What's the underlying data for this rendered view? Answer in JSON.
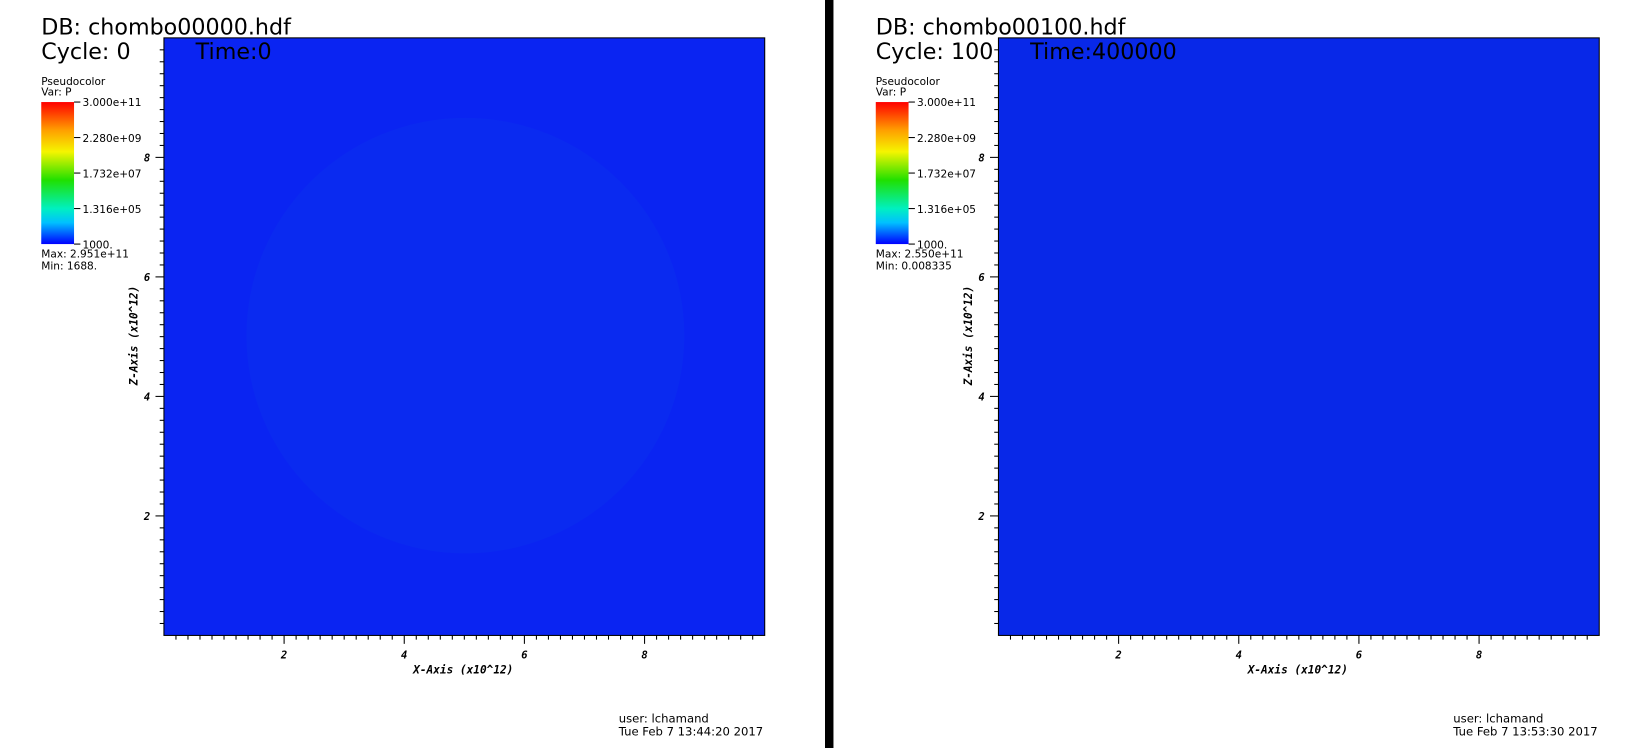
{
  "panels": [
    {
      "db": "DB: chombo00000.hdf",
      "cycle": "Cycle: 0",
      "time": "Time:0",
      "legend": {
        "title": "Pseudocolor",
        "var": "Var: P",
        "labels": [
          "3.000e+11",
          "2.280e+09",
          "1.732e+07",
          "1.316e+05",
          "1000."
        ],
        "max": "Max:  2.951e+11",
        "min": "Min:  1688."
      },
      "x_ticks": [
        "2",
        "4",
        "6",
        "8"
      ],
      "y_ticks": [
        "8",
        "6",
        "4",
        "2"
      ],
      "x_axis_label": "X-Axis (x10^12)",
      "y_axis_label": "Z-Axis (x10^12)",
      "user": "user: lchamand",
      "date": "Tue Feb  7 13:44:20 2017"
    },
    {
      "db": "DB: chombo00100.hdf",
      "cycle": "Cycle: 100",
      "time": "Time:400000",
      "legend": {
        "title": "Pseudocolor",
        "var": "Var: P",
        "labels": [
          "3.000e+11",
          "2.280e+09",
          "1.732e+07",
          "1.316e+05",
          "1000."
        ],
        "max": "Max:  2.550e+11",
        "min": "Min:  0.008335"
      },
      "x_ticks": [
        "2",
        "4",
        "6",
        "8"
      ],
      "y_ticks": [
        "8",
        "6",
        "4",
        "2"
      ],
      "x_axis_label": "X-Axis (x10^12)",
      "y_axis_label": "Z-Axis (x10^12)",
      "user": "user: lchamand",
      "date": "Tue Feb  7 13:53:30 2017"
    }
  ]
}
